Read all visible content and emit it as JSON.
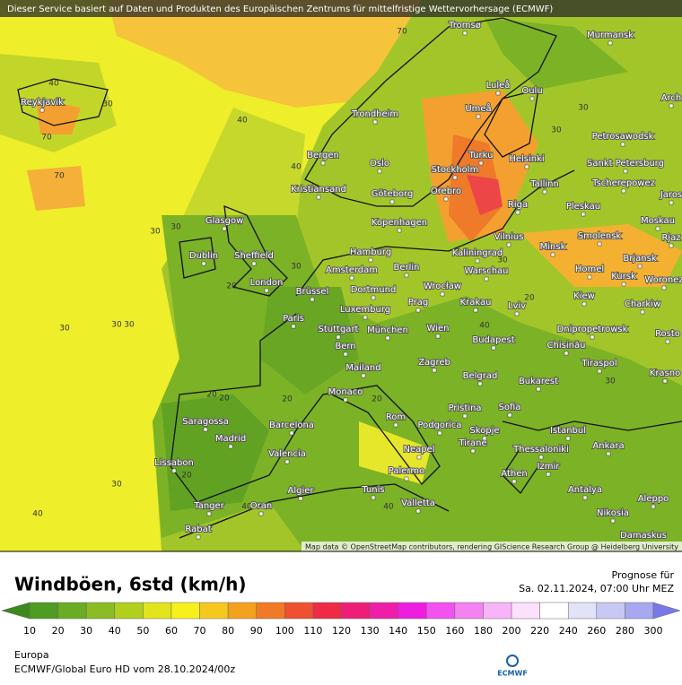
{
  "header": {
    "banner": "Dieser Service basiert auf Daten und Produkten des Europäischen Zentrums für mittelfristige Wettervorhersage (ECMWF)",
    "attribution": "Map data © OpenStreetMap contributors, rendering GIScience Research Group @ Heidelberg University"
  },
  "map": {
    "cities": [
      "Tromsø",
      "Murmansk",
      "Luleå",
      "Oulu",
      "Arch",
      "Reykjavik",
      "Trondheim",
      "Umeå",
      "Petrosawodsk",
      "Bergen",
      "Oslo",
      "Turku",
      "Helsinki",
      "Sankt Petersburg",
      "Stockholm",
      "Kristiansand",
      "Göteborg",
      "Orebro",
      "Tallinn",
      "Tscherepowez",
      "Jaros",
      "Riga",
      "Pleskau",
      "Glasgow",
      "Kopenhagen",
      "Moskau",
      "Vilnius",
      "Smolensk",
      "Rjaz",
      "Minsk",
      "Hamburg",
      "Kaliningrad",
      "Sheffield",
      "Dublin",
      "Brjansk",
      "Berlin",
      "Amsterdam",
      "Homel",
      "Warschau",
      "Kursk",
      "Woronez",
      "London",
      "Wrocław",
      "Brüssel",
      "Dortmund",
      "Kiew",
      "Krakau",
      "Prag",
      "Lviv",
      "Charkiw",
      "Luxemburg",
      "Paris",
      "Stuttgart",
      "München",
      "Wien",
      "Dnipropetrowsk",
      "Rosto",
      "Chisinău",
      "Budapest",
      "Bern",
      "Tiraspol",
      "Zagreb",
      "Mailand",
      "Krasno",
      "Belgrad",
      "Bukarest",
      "Monaco",
      "Pristina",
      "Sofia",
      "Rom",
      "Podgorica",
      "Skopje",
      "Istanbul",
      "Saragossa",
      "Barcelona",
      "Madrid",
      "Ankara",
      "Tirane",
      "Thessaloniki",
      "Neapel",
      "Valencia",
      "Lissabon",
      "Izmir",
      "Palermo",
      "Athen",
      "Algier",
      "Tunis",
      "Antalya",
      "Aleppo",
      "Tanger",
      "Oran",
      "Valletta",
      "Nikosia",
      "Rabat",
      "Damaskus"
    ],
    "contour_labels": [
      70,
      40,
      30,
      70,
      70,
      40,
      40,
      30,
      30,
      30,
      30,
      30,
      20,
      20,
      30,
      40,
      20,
      40,
      20,
      30,
      20,
      40,
      30,
      30,
      30,
      40,
      20,
      40,
      30,
      20
    ]
  },
  "legend": {
    "title": "Windböen, 6std (km/h)",
    "forecast_label": "Prognose für",
    "forecast_time": "Sa. 02.11.2024, 07:00 Uhr MEZ",
    "ticks": [
      10,
      20,
      30,
      40,
      50,
      60,
      70,
      80,
      90,
      100,
      110,
      120,
      130,
      140,
      150,
      160,
      180,
      200,
      220,
      240,
      260,
      280,
      300
    ],
    "colors": [
      "#3a8a1c",
      "#4e9c22",
      "#6aac24",
      "#8cbc24",
      "#b2cf1e",
      "#e2e41c",
      "#f8f01c",
      "#f6c81e",
      "#f4a21e",
      "#f07a26",
      "#ee5030",
      "#ee2a44",
      "#ee1e78",
      "#ee1ea8",
      "#ee1ee0",
      "#f252f0",
      "#f482f2",
      "#f8b4f8",
      "#fce0fc",
      "#ffffff",
      "#e2e2f8",
      "#c8c8f4",
      "#a8a8f0",
      "#7878e8"
    ]
  },
  "footer": {
    "region": "Europa",
    "model": "ECMWF/Global Euro HD vom  28.10.2024/00z",
    "logo": "ECMWF"
  }
}
